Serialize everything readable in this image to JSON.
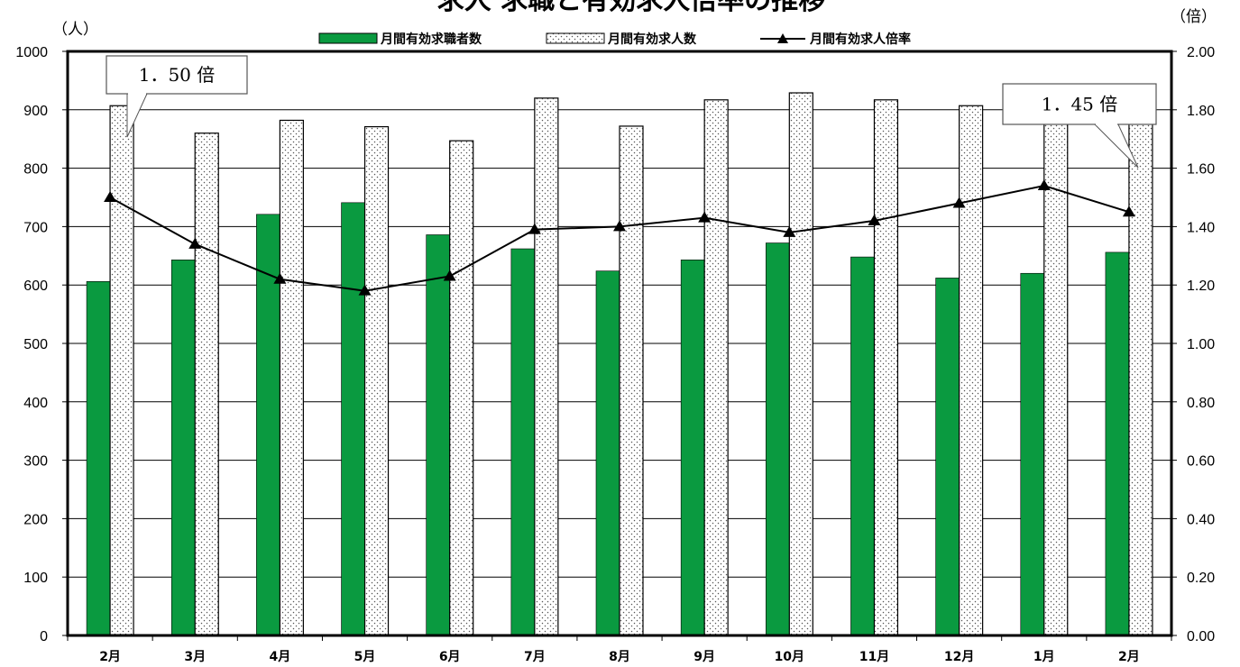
{
  "chart_data": {
    "type": "bar",
    "title": "求人 求職と有効求人倍率の推移",
    "left_unit": "（人）",
    "right_unit": "（倍）",
    "categories": [
      "2月",
      "3月",
      "4月",
      "5月",
      "6月",
      "7月",
      "8月",
      "9月",
      "10月",
      "11月",
      "12月",
      "1月",
      "2月"
    ],
    "left_axis": {
      "min": 0,
      "max": 1000,
      "ticks": [
        "0",
        "100",
        "200",
        "300",
        "400",
        "500",
        "600",
        "700",
        "800",
        "900",
        "1000"
      ]
    },
    "right_axis": {
      "min": 0,
      "max": 2,
      "ticks": [
        "0.00",
        "0.20",
        "0.40",
        "0.60",
        "0.80",
        "1.00",
        "1.20",
        "1.40",
        "1.60",
        "1.80",
        "2.00"
      ]
    },
    "grid": "horizontal",
    "legend_position": "top",
    "series": [
      {
        "name": "月間有効求職者数",
        "type": "bar",
        "axis": "left",
        "color": "#0a9a40",
        "values": [
          606,
          643,
          721,
          741,
          686,
          662,
          624,
          643,
          672,
          648,
          612,
          620,
          656
        ]
      },
      {
        "name": "月間有効求人数",
        "type": "bar",
        "axis": "left",
        "pattern": "dots",
        "values": [
          907,
          860,
          882,
          871,
          847,
          920,
          872,
          917,
          929,
          917,
          907,
          898,
          880
        ]
      },
      {
        "name": "月間有効求人倍率",
        "type": "line",
        "axis": "right",
        "marker": "triangle",
        "color": "#000000",
        "values": [
          1.5,
          1.34,
          1.22,
          1.18,
          1.23,
          1.39,
          1.4,
          1.43,
          1.38,
          1.42,
          1.48,
          1.54,
          1.45
        ]
      }
    ],
    "annotations": [
      {
        "text": "1．50 倍",
        "category_index": 0
      },
      {
        "text": "1．45 倍",
        "category_index": 12
      }
    ]
  }
}
